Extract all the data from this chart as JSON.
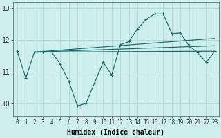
{
  "xlabel": "Humidex (Indice chaleur)",
  "background_color": "#cdeeed",
  "grid_color": "#b0ddd8",
  "line_color": "#1a6b6b",
  "x_ticks": [
    0,
    1,
    2,
    3,
    4,
    5,
    6,
    7,
    8,
    9,
    10,
    11,
    12,
    13,
    14,
    15,
    16,
    17,
    18,
    19,
    20,
    21,
    22,
    23
  ],
  "y_ticks": [
    10,
    11,
    12,
    13
  ],
  "ylim": [
    9.6,
    13.2
  ],
  "xlim": [
    -0.5,
    23.5
  ],
  "line1_x": [
    0,
    1,
    2,
    3,
    4,
    5,
    6,
    7,
    8,
    9,
    10,
    11,
    12,
    13,
    14,
    15,
    16,
    17,
    18,
    19,
    20,
    21,
    22,
    23
  ],
  "line1_y": [
    11.65,
    10.8,
    11.62,
    11.62,
    11.62,
    11.25,
    10.7,
    9.93,
    10.0,
    10.65,
    11.3,
    10.9,
    11.85,
    11.95,
    12.35,
    12.65,
    12.82,
    12.82,
    12.2,
    12.22,
    11.82,
    11.6,
    11.3,
    11.65
  ],
  "line2_x": [
    2,
    23
  ],
  "line2_y": [
    11.62,
    11.65
  ],
  "line3_x": [
    2,
    23
  ],
  "line3_y": [
    11.62,
    11.82
  ],
  "line4_x": [
    2,
    23
  ],
  "line4_y": [
    11.62,
    12.05
  ]
}
